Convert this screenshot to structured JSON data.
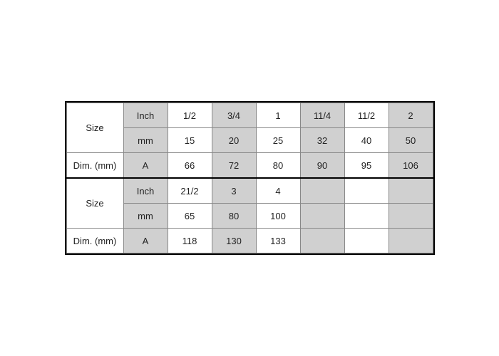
{
  "table": {
    "background_color": "#ffffff",
    "shaded_color": "#d0d0d0",
    "border_color_outer": "#000000",
    "border_color_inner": "#888888",
    "font_size": 13,
    "section1": {
      "size_label": "Size",
      "dim_label": "Dim. (mm)",
      "inch_label": "Inch",
      "mm_label": "mm",
      "a_label": "A",
      "inch": [
        "1/2",
        "3/4",
        "1",
        "11/4",
        "11/2",
        "2"
      ],
      "mm": [
        "15",
        "20",
        "25",
        "32",
        "40",
        "50"
      ],
      "a": [
        "66",
        "72",
        "80",
        "90",
        "95",
        "106"
      ]
    },
    "section2": {
      "size_label": "Size",
      "dim_label": "Dim. (mm)",
      "inch_label": "Inch",
      "mm_label": "mm",
      "a_label": "A",
      "inch": [
        "21/2",
        "3",
        "4",
        "",
        "",
        ""
      ],
      "mm": [
        "65",
        "80",
        "100",
        "",
        "",
        ""
      ],
      "a": [
        "118",
        "130",
        "133",
        "",
        "",
        ""
      ]
    }
  }
}
